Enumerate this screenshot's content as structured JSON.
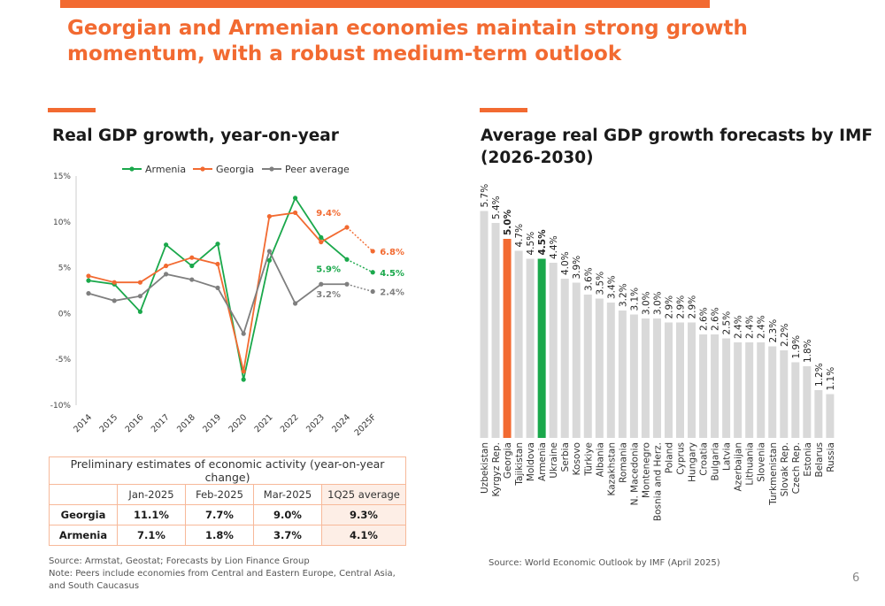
{
  "headline": {
    "line1": "Georgian and Armenian economies maintain strong growth",
    "line2": "momentum, with a robust medium-term outlook"
  },
  "left_title": "Real GDP growth, year-on-year",
  "right_title_line1": "Average real GDP growth forecasts by IMF",
  "right_title_line2": "(2026-2030)",
  "colors": {
    "accent": "#f26a31",
    "armenia": "#1aa84b",
    "georgia": "#f26a31",
    "peer": "#7f7f7f",
    "bar": "#d9d9d9"
  },
  "chart_data": [
    {
      "type": "line",
      "title": "Real GDP growth, year-on-year",
      "x": [
        "2014",
        "2015",
        "2016",
        "2017",
        "2018",
        "2019",
        "2020",
        "2021",
        "2022",
        "2023",
        "2024",
        "2025F"
      ],
      "yticks": [
        "15%",
        "10%",
        "5%",
        "0%",
        "-5%",
        "-10%"
      ],
      "ylim": [
        -10,
        15
      ],
      "legend_position": "top",
      "grid": false,
      "series": [
        {
          "name": "Armenia",
          "values": [
            3.6,
            3.2,
            0.2,
            7.5,
            5.2,
            7.6,
            -7.2,
            5.8,
            12.6,
            8.3,
            5.9,
            4.5
          ],
          "forecast_from": 10
        },
        {
          "name": "Georgia",
          "values": [
            4.1,
            3.4,
            3.4,
            5.2,
            6.1,
            5.4,
            -6.3,
            10.6,
            11.0,
            7.8,
            9.4,
            6.8
          ],
          "forecast_from": 10
        },
        {
          "name": "Peer average",
          "values": [
            2.2,
            1.4,
            1.9,
            4.3,
            3.7,
            2.8,
            -2.2,
            6.8,
            1.1,
            3.2,
            3.2,
            2.4
          ],
          "forecast_from": 10
        }
      ],
      "annotations": {
        "georgia_2024": "9.4%",
        "georgia_2025F": "6.8%",
        "armenia_2024": "5.9%",
        "armenia_2025F": "4.5%",
        "peer_2024": "3.2%",
        "peer_2025F": "2.4%"
      }
    },
    {
      "type": "bar",
      "title": "Average real GDP growth forecasts by IMF (2026-2030)",
      "categories": [
        "Uzbekistan",
        "Kyrgyz Rep.",
        "Georgia",
        "Tajikistan",
        "Moldova",
        "Armenia",
        "Ukraine",
        "Serbia",
        "Kosovo",
        "Türkiye",
        "Albania",
        "Kazakhstan",
        "Romania",
        "N. Macedonia",
        "Montenegro",
        "Bosnia and Herz.",
        "Poland",
        "Cyprus",
        "Hungary",
        "Croatia",
        "Bulgaria",
        "Latvia",
        "Azerbaijan",
        "Lithuania",
        "Slovenia",
        "Turkmenistan",
        "Slovak Rep.",
        "Czech Rep.",
        "Estonia",
        "Belarus",
        "Russia"
      ],
      "values": [
        5.7,
        5.4,
        5.0,
        4.7,
        4.5,
        4.5,
        4.4,
        4.0,
        3.9,
        3.6,
        3.5,
        3.4,
        3.2,
        3.1,
        3.0,
        3.0,
        2.9,
        2.9,
        2.9,
        2.6,
        2.6,
        2.5,
        2.4,
        2.4,
        2.4,
        2.3,
        2.2,
        1.9,
        1.8,
        1.2,
        1.1
      ],
      "value_labels": [
        "5.7%",
        "5.4%",
        "5.0%",
        "4.7%",
        "4.5%",
        "4.5%",
        "4.4%",
        "4.0%",
        "3.9%",
        "3.6%",
        "3.5%",
        "3.4%",
        "3.2%",
        "3.1%",
        "3.0%",
        "3.0%",
        "2.9%",
        "2.9%",
        "2.9%",
        "2.6%",
        "2.6%",
        "2.5%",
        "2.4%",
        "2.4%",
        "2.4%",
        "2.3%",
        "2.2%",
        "1.9%",
        "1.8%",
        "1.2%",
        "1.1%"
      ],
      "highlight": {
        "Georgia": "#f26a31",
        "Armenia": "#1aa84b"
      },
      "ylim": [
        0,
        6
      ]
    }
  ],
  "table": {
    "caption": "Preliminary estimates of economic activity (year-on-year change)",
    "columns": [
      "Jan-2025",
      "Feb-2025",
      "Mar-2025",
      "1Q25 average"
    ],
    "rows": [
      {
        "label": "Georgia",
        "values": [
          "11.1%",
          "7.7%",
          "9.0%",
          "9.3%"
        ]
      },
      {
        "label": "Armenia",
        "values": [
          "7.1%",
          "1.8%",
          "3.7%",
          "4.1%"
        ]
      }
    ]
  },
  "notes": {
    "left_line1": "Source: Armstat, Geostat; Forecasts by Lion Finance Group",
    "left_line2": "Note: Peers include economies from Central and Eastern Europe, Central Asia,",
    "left_line3": "and South Caucasus",
    "right": "Source: World Economic Outlook by IMF (April 2025)"
  },
  "page_number": "6"
}
